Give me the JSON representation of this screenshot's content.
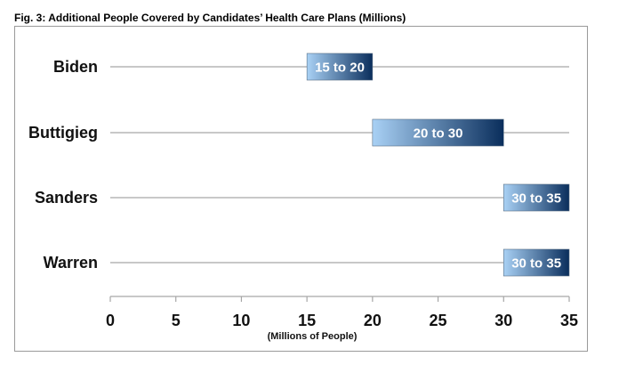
{
  "figure": {
    "title": "Fig. 3: Additional People Covered by Candidates’ Health Care Plans (Millions)"
  },
  "chart_data": {
    "type": "bar",
    "subtype": "floating-range",
    "categories": [
      "Biden",
      "Buttigieg",
      "Sanders",
      "Warren"
    ],
    "ranges": [
      {
        "category": "Biden",
        "low": 15,
        "high": 20,
        "label": "15 to 20"
      },
      {
        "category": "Buttigieg",
        "low": 20,
        "high": 30,
        "label": "20 to 30"
      },
      {
        "category": "Sanders",
        "low": 30,
        "high": 35,
        "label": "30 to 35"
      },
      {
        "category": "Warren",
        "low": 30,
        "high": 35,
        "label": "30 to 35"
      }
    ],
    "xlabel": "(Millions of People)",
    "xlim": [
      0,
      35
    ],
    "xticks": [
      0,
      5,
      10,
      15,
      20,
      25,
      30,
      35
    ],
    "grid": false,
    "bar_gradient": {
      "start": "#a9d1f5",
      "end": "#0a2e5c"
    },
    "line_color": "#a6a6a6"
  }
}
